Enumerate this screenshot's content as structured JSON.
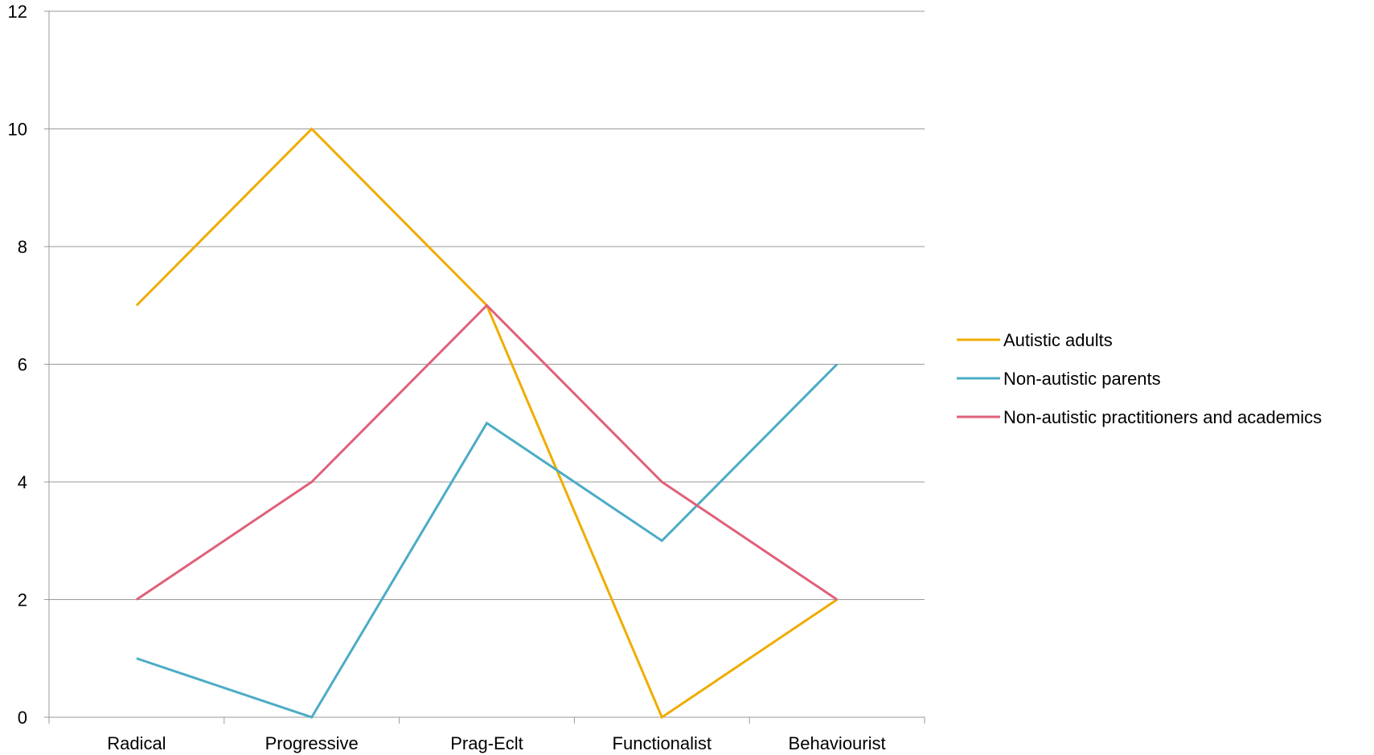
{
  "chart_data": {
    "type": "line",
    "categories": [
      "Radical",
      "Progressive",
      "Prag-Eclt",
      "Functionalist",
      "Behaviourist"
    ],
    "series": [
      {
        "name": "Autistic adults",
        "values": [
          7,
          10,
          7,
          0,
          2
        ],
        "color": "#F0AC00"
      },
      {
        "name": "Non-autistic parents",
        "values": [
          1,
          0,
          5,
          3,
          6
        ],
        "color": "#4BACC6"
      },
      {
        "name": "Non-autistic practitioners and academics",
        "values": [
          2,
          4,
          7,
          4,
          2
        ],
        "color": "#E0607A"
      }
    ],
    "ylim": [
      0,
      12
    ],
    "yticks": [
      0,
      2,
      4,
      6,
      8,
      10,
      12
    ],
    "grid": true,
    "legend_position": "right",
    "title": "",
    "xlabel": "",
    "ylabel": ""
  }
}
